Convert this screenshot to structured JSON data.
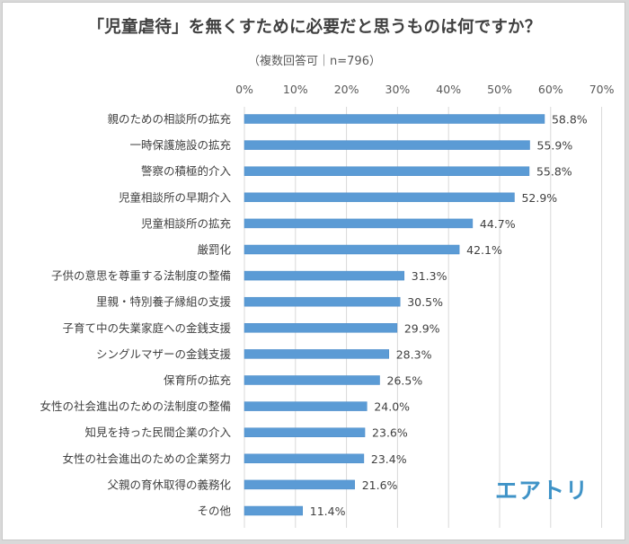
{
  "chart_data": {
    "type": "bar",
    "orientation": "horizontal",
    "title": "「児童虐待」を無くすために必要だと思うものは何ですか？",
    "subtitle": "（複数回答可｜n=796）",
    "xlabel": "",
    "ylabel": "",
    "xlim": [
      0,
      70
    ],
    "x_ticks": [
      0,
      10,
      20,
      30,
      40,
      50,
      60,
      70
    ],
    "x_tick_labels": [
      "0%",
      "10%",
      "20%",
      "30%",
      "40%",
      "50%",
      "60%",
      "70%"
    ],
    "axis_position": "top",
    "grid": true,
    "legend": "none",
    "bar_color": "#5b9bd5",
    "categories": [
      "親のための相談所の拡充",
      "一時保護施設の拡充",
      "警察の積極的介入",
      "児童相談所の早期介入",
      "児童相談所の拡充",
      "厳罰化",
      "子供の意思を尊重する法制度の整備",
      "里親・特別養子縁組の支援",
      "子育て中の失業家庭への金銭支援",
      "シングルマザーの金銭支援",
      "保育所の拡充",
      "女性の社会進出のための法制度の整備",
      "知見を持った民間企業の介入",
      "女性の社会進出のための企業努力",
      "父親の育休取得の義務化",
      "その他"
    ],
    "values": [
      58.8,
      55.9,
      55.8,
      52.9,
      44.7,
      42.1,
      31.3,
      30.5,
      29.9,
      28.3,
      26.5,
      24.0,
      23.6,
      23.4,
      21.6,
      11.4
    ],
    "value_labels": [
      "58.8%",
      "55.9%",
      "55.8%",
      "52.9%",
      "44.7%",
      "42.1%",
      "31.3%",
      "30.5%",
      "29.9%",
      "28.3%",
      "26.5%",
      "24.0%",
      "23.6%",
      "23.4%",
      "21.6%",
      "11.4%"
    ]
  },
  "logo": {
    "text": "エアトリ",
    "color": "#3f93c7"
  }
}
